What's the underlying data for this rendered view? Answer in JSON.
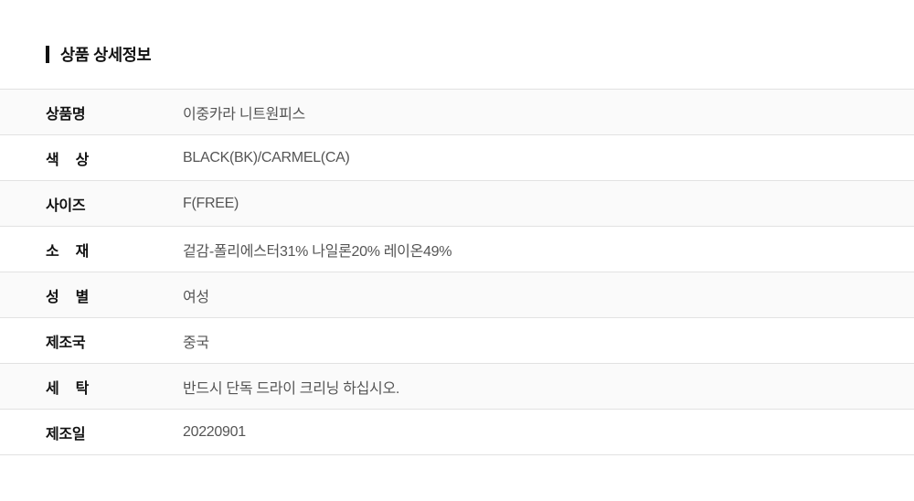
{
  "section": {
    "title": "상품 상세정보"
  },
  "product_details": {
    "rows": [
      {
        "label": "상품명",
        "value": "이중카라 니트원피스"
      },
      {
        "label": "색 상",
        "value": "BLACK(BK)/CARMEL(CA)"
      },
      {
        "label": "사이즈",
        "value": "F(FREE)"
      },
      {
        "label": "소 재",
        "value": "겉감-폴리에스터31% 나일론20% 레이온49%"
      },
      {
        "label": "성 별",
        "value": "여성"
      },
      {
        "label": "제조국",
        "value": "중국"
      },
      {
        "label": "세 탁",
        "value": "반드시 단독 드라이 크리닝 하십시오."
      },
      {
        "label": "제조일",
        "value": "20220901"
      }
    ]
  },
  "colors": {
    "accent_bar": "#111111",
    "label_text": "#111111",
    "value_text": "#555555",
    "row_alt_bg": "#fafafa",
    "border": "#e2e2e2"
  }
}
